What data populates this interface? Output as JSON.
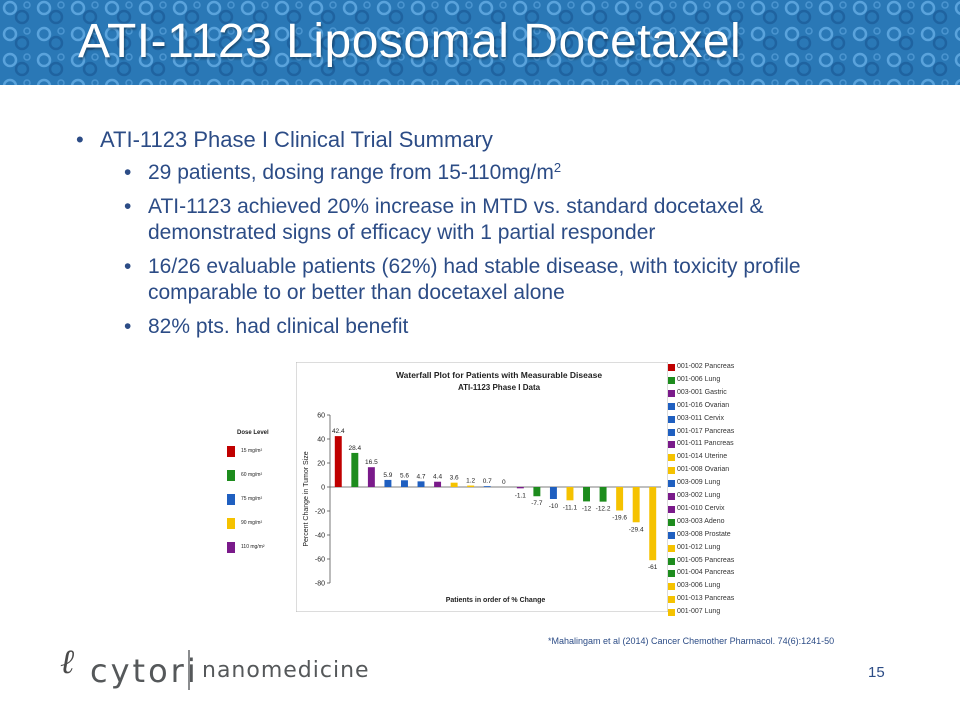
{
  "slide": {
    "title": "ATI-1123 Liposomal Docetaxel",
    "page_number": "15",
    "citation": "*Mahalingam et al (2014)  Cancer Chemother Pharmacol. 74(6):1241-50"
  },
  "bullets": {
    "main": "ATI-1123 Phase I Clinical Trial Summary",
    "subs": [
      {
        "text": "29 patients, dosing range from 15-110mg/m",
        "sup": "2"
      },
      {
        "text": "ATI-1123 achieved 20% increase in MTD vs. standard docetaxel & demonstrated signs of efficacy with 1 partial responder",
        "sup": ""
      },
      {
        "text": "16/26 evaluable patients (62%) had stable disease, with toxicity profile comparable to or better than docetaxel alone",
        "sup": ""
      },
      {
        "text": "82% pts. had clinical benefit",
        "sup": ""
      }
    ]
  },
  "logo": {
    "brand": "cytori",
    "sub": "nanomedicine"
  },
  "colors": {
    "red": "#c00000",
    "green": "#1d8c1d",
    "blue": "#1f5fc0",
    "yellow": "#f5c200",
    "purple": "#7a1a8a",
    "header": "#2a78b6"
  },
  "dose_legend": {
    "title": "Dose Level",
    "items": [
      {
        "label": "15 mg/m²",
        "color": "#c00000"
      },
      {
        "label": "60 mg/m²",
        "color": "#1d8c1d"
      },
      {
        "label": "75 mg/m²",
        "color": "#1f5fc0"
      },
      {
        "label": "90 mg/m²",
        "color": "#f5c200"
      },
      {
        "label": "110 mg/m²",
        "color": "#7a1a8a"
      }
    ]
  },
  "patient_legend": [
    {
      "id": "001-002",
      "site": "Pancreas",
      "color": "#c00000"
    },
    {
      "id": "001-006",
      "site": "Lung",
      "color": "#1d8c1d"
    },
    {
      "id": "003-001",
      "site": "Gastric",
      "color": "#7a1a8a"
    },
    {
      "id": "001-016",
      "site": "Ovarian",
      "color": "#1f5fc0"
    },
    {
      "id": "003-011",
      "site": "Cervix",
      "color": "#1f5fc0"
    },
    {
      "id": "001-017",
      "site": "Pancreas",
      "color": "#1f5fc0"
    },
    {
      "id": "001-011",
      "site": "Pancreas",
      "color": "#7a1a8a"
    },
    {
      "id": "001-014",
      "site": "Uterine",
      "color": "#f5c200"
    },
    {
      "id": "001-008",
      "site": "Ovarian",
      "color": "#f5c200"
    },
    {
      "id": "003-009",
      "site": "Lung",
      "color": "#1f5fc0"
    },
    {
      "id": "003-002",
      "site": "Lung",
      "color": "#7a1a8a"
    },
    {
      "id": "001-010",
      "site": "Cervix",
      "color": "#7a1a8a"
    },
    {
      "id": "003-003",
      "site": "Adeno",
      "color": "#1d8c1d"
    },
    {
      "id": "003-008",
      "site": "Prostate",
      "color": "#1f5fc0"
    },
    {
      "id": "001-012",
      "site": "Lung",
      "color": "#f5c200"
    },
    {
      "id": "001-005",
      "site": "Pancreas",
      "color": "#1d8c1d"
    },
    {
      "id": "001-004",
      "site": "Pancreas",
      "color": "#1d8c1d"
    },
    {
      "id": "003-006",
      "site": "Lung",
      "color": "#f5c200"
    },
    {
      "id": "001-013",
      "site": "Pancreas",
      "color": "#f5c200"
    },
    {
      "id": "001-007",
      "site": "Lung",
      "color": "#f5c200"
    }
  ],
  "chart_data": {
    "type": "bar",
    "title": "Waterfall Plot for Patients with Measurable Disease",
    "subtitle": "ATI-1123 Phase I Data",
    "xlabel": "Patients in order of % Change",
    "ylabel": "Percent Change in Tumor Size",
    "ylim": [
      -80,
      60
    ],
    "yticks": [
      60,
      40,
      20,
      0,
      -20,
      -40,
      -60,
      -80
    ],
    "grid": false,
    "values": [
      42.4,
      28.4,
      16.5,
      5.9,
      5.6,
      4.7,
      4.4,
      3.6,
      1.2,
      0.7,
      0,
      -1.1,
      -7.7,
      -10,
      -11.1,
      -12,
      -12.2,
      -19.6,
      -29.4,
      -61
    ],
    "labels": [
      "42.4",
      "28.4",
      "16.5",
      "5.9",
      "5.6",
      "4.7",
      "4.4",
      "3.6",
      "1.2",
      "0.7",
      "0",
      "-1.1",
      "-7.7",
      "-10",
      "-11.1",
      "-12",
      "-12.2",
      "-19.6",
      "-29.4",
      "-61"
    ],
    "colors": [
      "#c00000",
      "#1d8c1d",
      "#7a1a8a",
      "#1f5fc0",
      "#1f5fc0",
      "#1f5fc0",
      "#7a1a8a",
      "#f5c200",
      "#f5c200",
      "#1f5fc0",
      "#7a1a8a",
      "#7a1a8a",
      "#1d8c1d",
      "#1f5fc0",
      "#f5c200",
      "#1d8c1d",
      "#1d8c1d",
      "#f5c200",
      "#f5c200",
      "#f5c200"
    ]
  }
}
